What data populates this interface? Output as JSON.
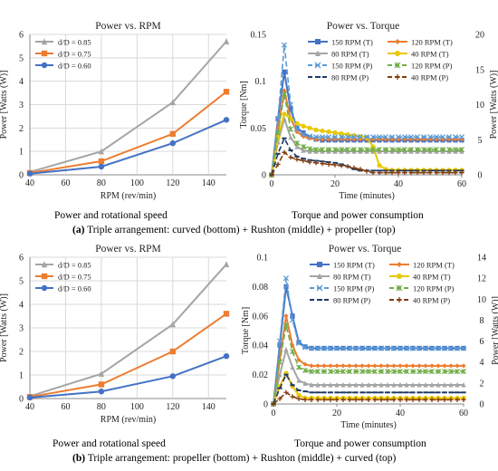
{
  "panels": [
    {
      "caption_prefix": "(a)",
      "caption_text": "Triple arrangement: curved (bottom) + Rushton (middle) + propeller (top)",
      "subcaption_left": "Power and rotational speed",
      "subcaption_right": "Torque and power consumption"
    },
    {
      "caption_prefix": "(b)",
      "caption_text": "Triple arrangement: propeller (bottom) + Rushton (middle) + curved (top)",
      "subcaption_left": "Power and rotational speed",
      "subcaption_right": "Torque and power consumption"
    }
  ],
  "chart_data": [
    {
      "type": "line",
      "title": "Power vs. RPM",
      "xlabel": "RPM (rev/min)",
      "ylabel": "Power [Watts (W)]",
      "xlim": [
        40,
        150
      ],
      "ylim": [
        0,
        6
      ],
      "xticks": [
        40,
        60,
        80,
        100,
        120,
        140
      ],
      "yticks": [
        0,
        1,
        2,
        3,
        4,
        5,
        6
      ],
      "grid": true,
      "legend": "top-left",
      "x": [
        40,
        80,
        120,
        150
      ],
      "series": [
        {
          "name": "d/D = 0.85",
          "color": "#a5a5a5",
          "marker": "triangle",
          "values": [
            0.12,
            1.0,
            3.1,
            5.7
          ]
        },
        {
          "name": "d/D = 0.75",
          "color": "#ed7d31",
          "marker": "square",
          "values": [
            0.08,
            0.58,
            1.75,
            3.55
          ]
        },
        {
          "name": "d/D = 0.60",
          "color": "#4472c4",
          "marker": "circle",
          "values": [
            0.05,
            0.35,
            1.35,
            2.35
          ]
        }
      ]
    },
    {
      "type": "line",
      "title": "Power vs. Torque",
      "xlabel": "Time (minutes)",
      "ylabel": "Torque [Nm]",
      "ylabel_right": "Power [Watts (W)]",
      "xlim": [
        0,
        60
      ],
      "ylim": [
        0,
        0.15
      ],
      "ylim_right": [
        0,
        20
      ],
      "xticks": [
        0,
        20,
        40,
        60
      ],
      "yticks": [
        0,
        0.05,
        0.1,
        0.15
      ],
      "yticks_right": [
        0,
        5,
        10,
        15,
        20
      ],
      "grid": false,
      "legend": "top-right",
      "x": [
        0,
        2,
        4,
        6,
        8,
        10,
        12,
        14,
        16,
        18,
        20,
        22,
        24,
        26,
        28,
        30,
        32,
        34,
        36,
        38,
        40,
        42,
        44,
        46,
        48,
        50,
        52,
        54,
        56,
        58,
        60
      ],
      "series": [
        {
          "name": "150 RPM (T)",
          "axis": "left",
          "color": "#4472c4",
          "dash": "solid",
          "marker": "square",
          "values": [
            0,
            0.06,
            0.11,
            0.07,
            0.05,
            0.045,
            0.04,
            0.038,
            0.037,
            0.037,
            0.037,
            0.037,
            0.037,
            0.037,
            0.037,
            0.037,
            0.037,
            0.037,
            0.037,
            0.037,
            0.037,
            0.037,
            0.037,
            0.037,
            0.037,
            0.037,
            0.037,
            0.037,
            0.037,
            0.037,
            0.037
          ]
        },
        {
          "name": "120 RPM (T)",
          "axis": "left",
          "color": "#ed7d31",
          "dash": "solid",
          "marker": "diamond",
          "values": [
            0,
            0.05,
            0.09,
            0.06,
            0.046,
            0.041,
            0.039,
            0.038,
            0.038,
            0.038,
            0.038,
            0.038,
            0.038,
            0.038,
            0.038,
            0.038,
            0.038,
            0.038,
            0.038,
            0.038,
            0.038,
            0.038,
            0.038,
            0.038,
            0.038,
            0.038,
            0.038,
            0.038,
            0.038,
            0.038,
            0.038
          ]
        },
        {
          "name": "80 RPM (T)",
          "axis": "left",
          "color": "#a5a5a5",
          "dash": "solid",
          "marker": "triangle",
          "values": [
            0,
            0.035,
            0.06,
            0.04,
            0.03,
            0.026,
            0.025,
            0.025,
            0.025,
            0.025,
            0.025,
            0.025,
            0.025,
            0.025,
            0.025,
            0.025,
            0.025,
            0.025,
            0.025,
            0.025,
            0.025,
            0.025,
            0.025,
            0.025,
            0.025,
            0.025,
            0.025,
            0.025,
            0.025,
            0.025,
            0.025
          ]
        },
        {
          "name": "40 RPM (T)",
          "axis": "left",
          "color": "#e8c800",
          "dash": "solid",
          "marker": "circle",
          "values": [
            0,
            0.04,
            0.065,
            0.06,
            0.055,
            0.052,
            0.05,
            0.048,
            0.047,
            0.046,
            0.045,
            0.044,
            0.043,
            0.042,
            0.041,
            0.04,
            0.03,
            0.01,
            0.006,
            0.005,
            0.005,
            0.005,
            0.005,
            0.005,
            0.005,
            0.005,
            0.005,
            0.005,
            0.005,
            0.005,
            0.005
          ]
        },
        {
          "name": "150 RPM (P)",
          "axis": "right",
          "color": "#5b9bd5",
          "dash": "dash",
          "marker": "x",
          "values": [
            0,
            8,
            18.5,
            10,
            6.5,
            5.8,
            5.5,
            5.4,
            5.4,
            5.4,
            5.4,
            5.4,
            5.4,
            5.4,
            5.4,
            5.4,
            5.4,
            5.4,
            5.4,
            5.4,
            5.4,
            5.4,
            5.4,
            5.4,
            5.4,
            5.4,
            5.4,
            5.4,
            5.4,
            5.4,
            5.4
          ]
        },
        {
          "name": "120 RPM (P)",
          "axis": "right",
          "color": "#70ad47",
          "dash": "dash",
          "marker": "star",
          "values": [
            0,
            6,
            11.5,
            6.5,
            4.5,
            4.0,
            3.7,
            3.6,
            3.6,
            3.6,
            3.6,
            3.6,
            3.6,
            3.6,
            3.6,
            3.6,
            3.6,
            3.6,
            3.6,
            3.6,
            3.6,
            3.6,
            3.6,
            3.6,
            3.6,
            3.6,
            3.6,
            3.6,
            3.6,
            3.6,
            3.6
          ]
        },
        {
          "name": "80 RPM (P)",
          "axis": "right",
          "color": "#1f3864",
          "dash": "dash",
          "marker": "dash",
          "values": [
            0,
            3,
            5.2,
            3.5,
            2.6,
            2.3,
            2.1,
            2.0,
            1.9,
            1.8,
            1.7,
            1.5,
            1.2,
            0.8,
            0.6,
            0.6,
            0.6,
            0.6,
            0.6,
            0.6,
            0.6,
            0.6,
            0.6,
            0.6,
            0.6,
            0.6,
            0.6,
            0.6,
            0.6,
            0.6,
            0.6
          ]
        },
        {
          "name": "40 RPM (P)",
          "axis": "right",
          "color": "#843c0c",
          "dash": "dash",
          "marker": "plus",
          "values": [
            0,
            1.5,
            3.2,
            2.5,
            2.2,
            2.0,
            1.8,
            1.7,
            1.6,
            1.5,
            1.4,
            1.3,
            1.2,
            1.0,
            0.8,
            0.5,
            0.3,
            0.3,
            0.3,
            0.3,
            0.3,
            0.3,
            0.3,
            0.3,
            0.3,
            0.3,
            0.3,
            0.3,
            0.3,
            0.3,
            0.3
          ]
        }
      ]
    },
    {
      "type": "line",
      "title": "Power vs. RPM",
      "xlabel": "RPM (rev/min)",
      "ylabel": "Power [Watts (W)]",
      "xlim": [
        40,
        150
      ],
      "ylim": [
        0,
        6
      ],
      "xticks": [
        40,
        60,
        80,
        100,
        120,
        140
      ],
      "yticks": [
        0,
        1,
        2,
        3,
        4,
        5,
        6
      ],
      "grid": true,
      "legend": "top-left",
      "x": [
        40,
        80,
        120,
        150
      ],
      "series": [
        {
          "name": "d/D = 0.85",
          "color": "#a5a5a5",
          "marker": "triangle",
          "values": [
            0.1,
            1.05,
            3.15,
            5.7
          ]
        },
        {
          "name": "d/D = 0.75",
          "color": "#ed7d31",
          "marker": "square",
          "values": [
            0.07,
            0.6,
            2.0,
            3.6
          ]
        },
        {
          "name": "d/D = 0.60",
          "color": "#4472c4",
          "marker": "circle",
          "values": [
            0.04,
            0.3,
            0.95,
            1.8
          ]
        }
      ]
    },
    {
      "type": "line",
      "title": "Power vs. Torque",
      "xlabel": "Time  (minutes)",
      "ylabel": "Torque  [Nm]",
      "ylabel_right": "Power [Watts (W)]",
      "xlim": [
        0,
        60
      ],
      "ylim": [
        0,
        0.1
      ],
      "ylim_right": [
        0,
        14
      ],
      "xticks": [
        0,
        20,
        40,
        60
      ],
      "yticks": [
        0,
        0.02,
        0.04,
        0.06,
        0.08,
        0.1
      ],
      "yticks_right": [
        0,
        2,
        4,
        6,
        8,
        10,
        12,
        14
      ],
      "grid": false,
      "legend": "top-right",
      "x": [
        0,
        2,
        4,
        6,
        8,
        10,
        12,
        14,
        16,
        18,
        20,
        22,
        24,
        26,
        28,
        30,
        32,
        34,
        36,
        38,
        40,
        42,
        44,
        46,
        48,
        50,
        52,
        54,
        56,
        58,
        60
      ],
      "series": [
        {
          "name": "150 RPM (T)",
          "axis": "left",
          "color": "#4472c4",
          "dash": "solid",
          "marker": "square",
          "values": [
            0,
            0.04,
            0.08,
            0.06,
            0.042,
            0.039,
            0.038,
            0.038,
            0.038,
            0.038,
            0.038,
            0.038,
            0.038,
            0.038,
            0.038,
            0.038,
            0.038,
            0.038,
            0.038,
            0.038,
            0.038,
            0.038,
            0.038,
            0.038,
            0.038,
            0.038,
            0.038,
            0.038,
            0.038,
            0.038,
            0.038
          ]
        },
        {
          "name": "120 RPM (T)",
          "axis": "left",
          "color": "#ed7d31",
          "dash": "solid",
          "marker": "diamond",
          "values": [
            0,
            0.03,
            0.06,
            0.04,
            0.03,
            0.027,
            0.026,
            0.026,
            0.026,
            0.026,
            0.026,
            0.026,
            0.026,
            0.026,
            0.026,
            0.026,
            0.026,
            0.026,
            0.026,
            0.026,
            0.026,
            0.026,
            0.026,
            0.026,
            0.026,
            0.026,
            0.026,
            0.026,
            0.026,
            0.026,
            0.026
          ]
        },
        {
          "name": "80 RPM (T)",
          "axis": "left",
          "color": "#a5a5a5",
          "dash": "solid",
          "marker": "triangle",
          "values": [
            0,
            0.02,
            0.037,
            0.025,
            0.016,
            0.014,
            0.013,
            0.013,
            0.013,
            0.013,
            0.013,
            0.013,
            0.013,
            0.013,
            0.013,
            0.013,
            0.013,
            0.013,
            0.013,
            0.013,
            0.013,
            0.013,
            0.013,
            0.013,
            0.013,
            0.013,
            0.013,
            0.013,
            0.013,
            0.013,
            0.013
          ]
        },
        {
          "name": "40 RPM (T)",
          "axis": "left",
          "color": "#e8c800",
          "dash": "solid",
          "marker": "circle",
          "values": [
            0,
            0.012,
            0.021,
            0.012,
            0.006,
            0.004,
            0.004,
            0.004,
            0.004,
            0.004,
            0.004,
            0.004,
            0.004,
            0.004,
            0.004,
            0.004,
            0.004,
            0.004,
            0.004,
            0.004,
            0.004,
            0.004,
            0.004,
            0.004,
            0.004,
            0.004,
            0.004,
            0.004,
            0.004,
            0.004,
            0.004
          ]
        },
        {
          "name": "150 RPM (P)",
          "axis": "right",
          "color": "#5b9bd5",
          "dash": "dash",
          "marker": "x",
          "values": [
            0,
            6,
            12,
            8,
            5.8,
            5.4,
            5.3,
            5.3,
            5.3,
            5.3,
            5.3,
            5.3,
            5.3,
            5.3,
            5.3,
            5.3,
            5.3,
            5.3,
            5.3,
            5.3,
            5.3,
            5.3,
            5.3,
            5.3,
            5.3,
            5.3,
            5.3,
            5.3,
            5.3,
            5.3,
            5.3
          ]
        },
        {
          "name": "120 RPM (P)",
          "axis": "right",
          "color": "#70ad47",
          "dash": "dash",
          "marker": "star",
          "values": [
            0,
            4,
            7.5,
            5,
            3.5,
            3.2,
            3.1,
            3.1,
            3.1,
            3.1,
            3.1,
            3.1,
            3.1,
            3.1,
            3.1,
            3.1,
            3.1,
            3.1,
            3.1,
            3.1,
            3.1,
            3.1,
            3.1,
            3.1,
            3.1,
            3.1,
            3.1,
            3.1,
            3.1,
            3.1,
            3.1
          ]
        },
        {
          "name": "80 RPM (P)",
          "axis": "right",
          "color": "#1f3864",
          "dash": "dash",
          "marker": "dash",
          "values": [
            0,
            1.5,
            2.8,
            1.8,
            1.3,
            1.2,
            1.1,
            1.1,
            1.1,
            1.1,
            1.1,
            1.1,
            1.1,
            1.1,
            1.1,
            1.1,
            1.1,
            1.1,
            1.1,
            1.1,
            1.1,
            1.1,
            1.1,
            1.1,
            1.1,
            1.1,
            1.1,
            1.1,
            1.1,
            1.1,
            1.1
          ]
        },
        {
          "name": "40 RPM (P)",
          "axis": "right",
          "color": "#843c0c",
          "dash": "dash",
          "marker": "plus",
          "values": [
            0,
            0.5,
            1.1,
            0.7,
            0.5,
            0.4,
            0.4,
            0.4,
            0.4,
            0.4,
            0.4,
            0.4,
            0.4,
            0.4,
            0.4,
            0.4,
            0.4,
            0.4,
            0.4,
            0.4,
            0.4,
            0.4,
            0.4,
            0.4,
            0.4,
            0.4,
            0.4,
            0.4,
            0.4,
            0.4,
            0.4
          ]
        }
      ]
    }
  ]
}
